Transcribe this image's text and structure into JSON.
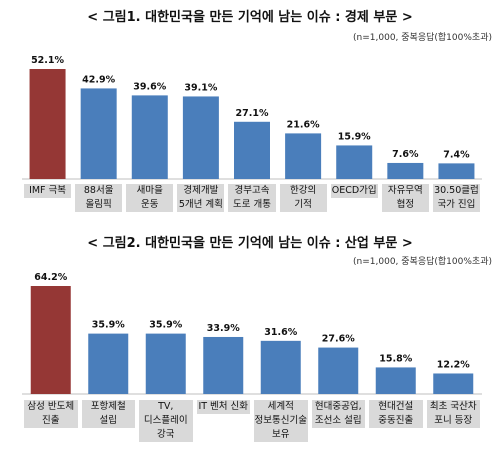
{
  "chart_data": [
    {
      "type": "bar",
      "title": "< 그림1. 대한민국을 만든 기억에 남는 이슈 : 경제 부문 >",
      "note": "(n=1,000, 중복응답(합100%초과)",
      "categories": [
        "IMF 극복",
        "88서울\n올림픽",
        "새마을\n운동",
        "경제개발\n5개년 계획",
        "경부고속\n도로 개통",
        "한강의\n기적",
        "OECD가입",
        "자유무역\n협정",
        "30.50클럽\n국가 진입"
      ],
      "values": [
        52.1,
        42.9,
        39.6,
        39.1,
        27.1,
        21.6,
        15.9,
        7.6,
        7.4
      ],
      "value_labels": [
        "52.1%",
        "42.9%",
        "39.6%",
        "39.1%",
        "27.1%",
        "21.6%",
        "15.9%",
        "7.6%",
        "7.4%"
      ],
      "highlight_color": "#953735",
      "bar_color": "#4a7ebb",
      "ylim": [
        0,
        60
      ]
    },
    {
      "type": "bar",
      "title": "< 그림2. 대한민국을 만든 기억에 남는 이슈 : 산업 부문 >",
      "note": "(n=1,000, 중복응답(합100%초과)",
      "categories": [
        "삼성 반도체\n진출",
        "포항제철\n설립",
        "TV,\n디스플레이\n강국",
        "IT 벤처 신화",
        "세계적\n정보통신기술\n보유",
        "현대중공업,\n조선소 설립",
        "현대건설\n중동진출",
        "최초 국산차\n포니 등장"
      ],
      "values": [
        64.2,
        35.9,
        35.9,
        33.9,
        31.6,
        27.6,
        15.8,
        12.2
      ],
      "value_labels": [
        "64.2%",
        "35.9%",
        "35.9%",
        "33.9%",
        "31.6%",
        "27.6%",
        "15.8%",
        "12.2%"
      ],
      "highlight_color": "#953735",
      "bar_color": "#4a7ebb",
      "ylim": [
        0,
        70
      ]
    }
  ]
}
